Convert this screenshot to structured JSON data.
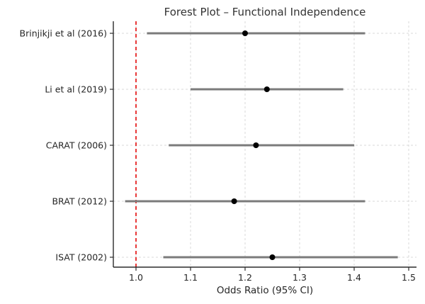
{
  "figure": {
    "title": "Forest Plot – Functional Independence",
    "xlabel": "Odds Ratio (95% CI)"
  },
  "chart_data": {
    "type": "scatter",
    "subtype": "forest-plot",
    "title": "Forest Plot – Functional Independence",
    "xlabel": "Odds Ratio (95% CI)",
    "ylabel": "",
    "xlim": [
      0.958,
      1.515
    ],
    "x_tick_labels": [
      "1.0",
      "1.1",
      "1.2",
      "1.3",
      "1.4",
      "1.5"
    ],
    "x_tick_values": [
      1.0,
      1.1,
      1.2,
      1.3,
      1.4,
      1.5
    ],
    "grid": true,
    "legend": false,
    "reference_line_x": 1.0,
    "studies": [
      {
        "label": "Brinjikji et al (2016)",
        "odds_ratio": 1.2,
        "ci_low": 1.02,
        "ci_high": 1.42
      },
      {
        "label": "Li et al (2019)",
        "odds_ratio": 1.24,
        "ci_low": 1.1,
        "ci_high": 1.38
      },
      {
        "label": "CARAT (2006)",
        "odds_ratio": 1.22,
        "ci_low": 1.06,
        "ci_high": 1.4
      },
      {
        "label": "BRAT (2012)",
        "odds_ratio": 1.18,
        "ci_low": 0.98,
        "ci_high": 1.42
      },
      {
        "label": "ISAT (2002)",
        "odds_ratio": 1.25,
        "ci_low": 1.05,
        "ci_high": 1.48
      }
    ],
    "colors": {
      "ci_line": "#7b7b7b",
      "marker": "#000000",
      "reference_line": "#e62222",
      "grid_line": "#d9d9d9",
      "spine": "#2b2b2b",
      "text": "#262626"
    }
  }
}
